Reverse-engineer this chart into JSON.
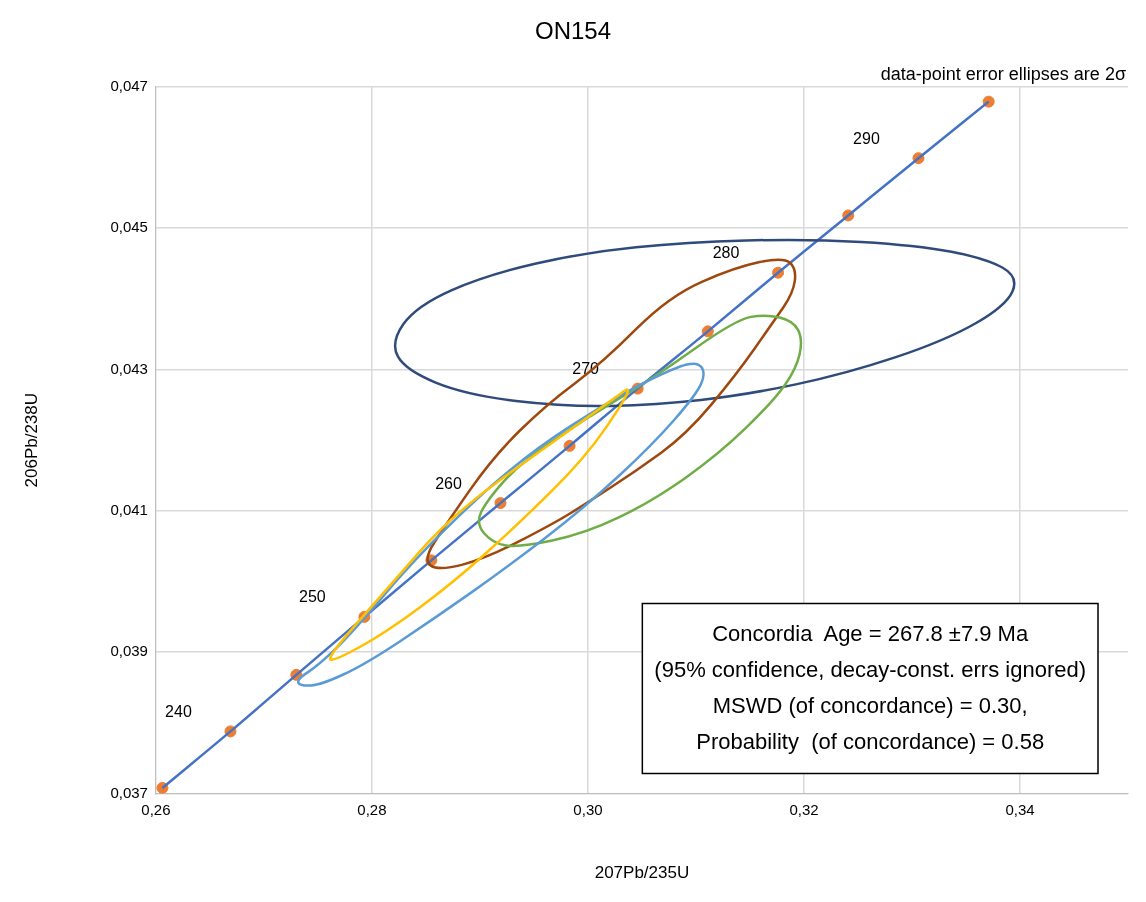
{
  "chart_data": {
    "type": "line",
    "title": "ON154",
    "xlabel": "207Pb/235U",
    "ylabel": "206Pb/238U",
    "xlim": [
      0.26,
      0.35
    ],
    "xticks": [
      {
        "value": 0.26,
        "label": "0,26"
      },
      {
        "value": 0.28,
        "label": "0,28"
      },
      {
        "value": 0.3,
        "label": "0,30"
      },
      {
        "value": 0.32,
        "label": "0,32"
      },
      {
        "value": 0.34,
        "label": "0,34"
      }
    ],
    "ylim": [
      0.037,
      0.047
    ],
    "yticks": [
      {
        "value": 0.037,
        "label": "0,037"
      },
      {
        "value": 0.039,
        "label": "0,039"
      },
      {
        "value": 0.041,
        "label": "0,041"
      },
      {
        "value": 0.043,
        "label": "0,043"
      },
      {
        "value": 0.045,
        "label": "0,045"
      },
      {
        "value": 0.047,
        "label": "0,047"
      }
    ],
    "grid": true,
    "legend": false,
    "line_style": "solid",
    "series": [
      {
        "type": "line",
        "marker": "none",
        "color": "#4472c4",
        "x": [
          0.2606,
          0.2669,
          0.273,
          0.2793,
          0.2855,
          0.2919,
          0.2983,
          0.3046,
          0.3111,
          0.3176,
          0.3241,
          0.3306,
          0.3371
        ],
        "values": [
          0.03708,
          0.03788,
          0.03868,
          0.0395,
          0.0403,
          0.04111,
          0.04192,
          0.04273,
          0.04354,
          0.04437,
          0.04518,
          0.04599,
          0.04679
        ]
      },
      {
        "type": "scatter",
        "marker": "circle",
        "color": "#ed7d31",
        "x": [
          0.2606,
          0.2669,
          0.273,
          0.2793,
          0.2855,
          0.2919,
          0.2983,
          0.3046,
          0.3111,
          0.3176,
          0.3241,
          0.3306,
          0.3371
        ],
        "values": [
          0.03708,
          0.03788,
          0.03868,
          0.0395,
          0.0403,
          0.04111,
          0.04192,
          0.04273,
          0.04354,
          0.04437,
          0.04518,
          0.04599,
          0.04679
        ]
      }
    ],
    "annotations": [
      "data-point error ellipses are 2σ",
      "Concordia  Age = 267.8 ±7.9 Ma",
      "(95% confidence, decay-const. errs ignored)",
      "MSWD (of concordance) = 0.30,",
      "Probability  (of concordance) = 0.58",
      {
        "text": "240",
        "x": 0.2669,
        "y": 0.03788
      },
      {
        "text": "250",
        "x": 0.2793,
        "y": 0.0395
      },
      {
        "text": "260",
        "x": 0.2919,
        "y": 0.04111
      },
      {
        "text": "270",
        "x": 0.3046,
        "y": 0.04273
      },
      {
        "text": "280",
        "x": 0.3176,
        "y": 0.04437
      },
      {
        "text": "290",
        "x": 0.3306,
        "y": 0.04599
      }
    ]
  }
}
